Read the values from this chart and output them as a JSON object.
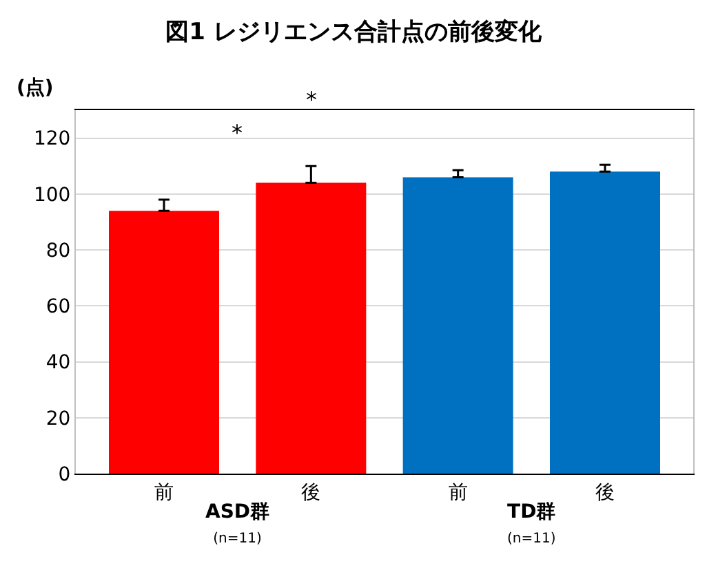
{
  "chart_data": {
    "type": "bar",
    "title": "図1 レジリエンス合計点の前後変化",
    "ylabel": "(点)",
    "categories": [
      "前",
      "後",
      "前",
      "後"
    ],
    "values": [
      94,
      104,
      106,
      108
    ],
    "colors": [
      "#ff0000",
      "#ff0000",
      "#0070c0",
      "#0070c0"
    ],
    "errors": [
      [
        94,
        98
      ],
      [
        104,
        110
      ],
      [
        106,
        108.5
      ],
      [
        108,
        110.5
      ]
    ],
    "ylim": [
      0,
      130
    ],
    "yticks": [
      0,
      20,
      40,
      60,
      80,
      100,
      120
    ],
    "grid": "y",
    "legend": false,
    "annotations": [
      "*",
      "*",
      "ASD群\n(n=11)",
      "TD群\n(n=11)"
    ]
  }
}
